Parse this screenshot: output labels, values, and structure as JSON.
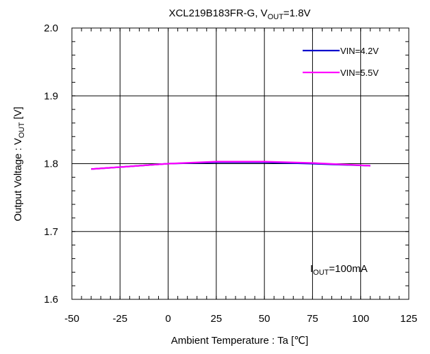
{
  "chart_data": {
    "type": "line",
    "title": {
      "main": "XCL219B183FR-G, V",
      "sub": "OUT",
      "tail": "=1.8V"
    },
    "xlabel": "Ambient Temperature : Ta [℃]",
    "ylabel": {
      "main": "Output Voltage : V",
      "sub": "OUT",
      "tail": " [V]"
    },
    "xlim": [
      -50,
      125
    ],
    "ylim": [
      1.6,
      2.0
    ],
    "xticks": [
      -50,
      -25,
      0,
      25,
      50,
      75,
      100,
      125
    ],
    "xtick_labels": [
      "-50",
      "-25",
      "0",
      "25",
      "50",
      "75",
      "100",
      "125"
    ],
    "yticks": [
      1.6,
      1.7,
      1.8,
      1.9,
      2.0
    ],
    "ytick_labels": [
      "1.6",
      "1.7",
      "1.8",
      "1.9",
      "2.0"
    ],
    "grid": true,
    "legend_position": "top-right",
    "series": [
      {
        "name": "VIN=4.2V",
        "color": "#0000cc",
        "x": [
          -40,
          -25,
          0,
          25,
          50,
          75,
          105
        ],
        "y": [
          1.792,
          1.795,
          1.8,
          1.802,
          1.802,
          1.8,
          1.797
        ]
      },
      {
        "name": "VIN=5.5V",
        "color": "#ff00ff",
        "x": [
          -40,
          -25,
          0,
          25,
          50,
          75,
          105
        ],
        "y": [
          1.792,
          1.795,
          1.8,
          1.803,
          1.803,
          1.801,
          1.797
        ]
      }
    ],
    "annotation": {
      "main": "I",
      "sub": "OUT",
      "tail": "=100mA"
    }
  }
}
